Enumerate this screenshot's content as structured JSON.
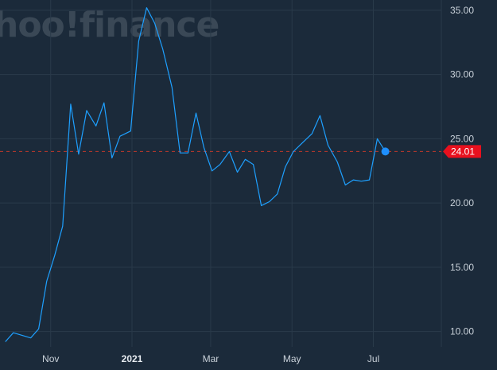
{
  "watermark": {
    "text": "hoo!finance"
  },
  "colors": {
    "background": "#1b2a3a",
    "grid": "#2a3a4a",
    "line": "#1ea0ff",
    "current_dash": "#c0392b",
    "current_label_bg": "#e8101e",
    "current_dot": "#1e8fff",
    "tick_text": "#c9d1d9"
  },
  "chart_data": {
    "type": "line",
    "title": "",
    "xlabel": "",
    "ylabel": "",
    "x_ticks": [
      {
        "label": "Nov",
        "date": "2020-11-01",
        "bold": false
      },
      {
        "label": "2021",
        "date": "2021-01-01",
        "bold": true
      },
      {
        "label": "Mar",
        "date": "2021-03-01",
        "bold": false
      },
      {
        "label": "May",
        "date": "2021-05-01",
        "bold": false
      },
      {
        "label": "Jul",
        "date": "2021-07-01",
        "bold": false
      }
    ],
    "y_ticks": [
      "10.00",
      "15.00",
      "20.00",
      "25.00",
      "30.00",
      "35.00"
    ],
    "ylim": [
      8.8,
      35.8
    ],
    "xlim": [
      "2020-09-24",
      "2021-08-21"
    ],
    "grid": true,
    "current_value": 24.01,
    "current_label": "24.01",
    "series": [
      {
        "points": [
          [
            "2020-09-28",
            9.2
          ],
          [
            "2020-10-04",
            9.9
          ],
          [
            "2020-10-17",
            9.5
          ],
          [
            "2020-10-23",
            10.2
          ],
          [
            "2020-10-29",
            13.9
          ],
          [
            "2020-11-04",
            15.9
          ],
          [
            "2020-11-10",
            18.2
          ],
          [
            "2020-11-16",
            27.7
          ],
          [
            "2020-11-22",
            23.8
          ],
          [
            "2020-11-28",
            27.2
          ],
          [
            "2020-12-05",
            26.0
          ],
          [
            "2020-12-11",
            27.8
          ],
          [
            "2020-12-17",
            23.5
          ],
          [
            "2020-12-23",
            25.2
          ],
          [
            "2020-12-31",
            25.6
          ],
          [
            "2021-01-06",
            32.6
          ],
          [
            "2021-01-12",
            35.2
          ],
          [
            "2021-01-18",
            34.0
          ],
          [
            "2021-01-24",
            32.0
          ],
          [
            "2021-01-31",
            29.0
          ],
          [
            "2021-02-06",
            23.9
          ],
          [
            "2021-02-12",
            23.9
          ],
          [
            "2021-02-18",
            27.0
          ],
          [
            "2021-02-24",
            24.3
          ],
          [
            "2021-03-02",
            22.5
          ],
          [
            "2021-03-08",
            23.0
          ],
          [
            "2021-03-15",
            24.0
          ],
          [
            "2021-03-21",
            22.4
          ],
          [
            "2021-03-27",
            23.4
          ],
          [
            "2021-04-02",
            23.0
          ],
          [
            "2021-04-08",
            19.8
          ],
          [
            "2021-04-14",
            20.1
          ],
          [
            "2021-04-20",
            20.7
          ],
          [
            "2021-04-26",
            22.8
          ],
          [
            "2021-05-02",
            24.0
          ],
          [
            "2021-05-09",
            24.7
          ],
          [
            "2021-05-16",
            25.4
          ],
          [
            "2021-05-22",
            26.8
          ],
          [
            "2021-05-28",
            24.5
          ],
          [
            "2021-06-04",
            23.2
          ],
          [
            "2021-06-10",
            21.4
          ],
          [
            "2021-06-16",
            21.8
          ],
          [
            "2021-06-22",
            21.7
          ],
          [
            "2021-06-28",
            21.8
          ],
          [
            "2021-07-04",
            25.0
          ],
          [
            "2021-07-10",
            24.01
          ]
        ]
      }
    ]
  }
}
